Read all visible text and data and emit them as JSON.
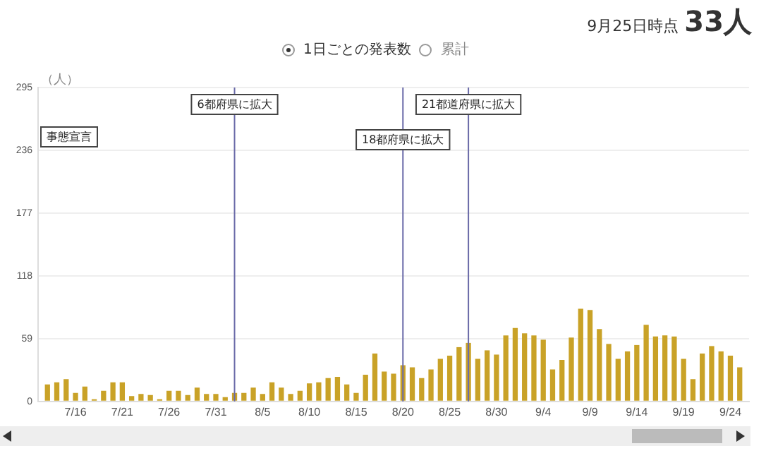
{
  "chart_data": {
    "type": "bar",
    "ylabel": "（人）",
    "color": "#c9a227",
    "x": [
      "--07-13",
      "--07-14",
      "--07-15",
      "--07-16",
      "--07-17",
      "--07-18",
      "--07-19",
      "--07-20",
      "--07-21",
      "--07-22",
      "--07-23",
      "--07-24",
      "--07-25",
      "--07-26",
      "--07-27",
      "--07-28",
      "--07-29",
      "--07-30",
      "--07-31",
      "--08-01",
      "--08-02",
      "--08-03",
      "--08-04",
      "--08-05",
      "--08-06",
      "--08-07",
      "--08-08",
      "--08-09",
      "--08-10",
      "--08-11",
      "--08-12",
      "--08-13",
      "--08-14",
      "--08-15",
      "--08-16",
      "--08-17",
      "--08-18",
      "--08-19",
      "--08-20",
      "--08-21",
      "--08-22",
      "--08-23",
      "--08-24",
      "--08-25",
      "--08-26",
      "--08-27",
      "--08-28",
      "--08-29",
      "--08-30",
      "--08-31",
      "--09-01",
      "--09-02",
      "--09-03",
      "--09-04",
      "--09-05",
      "--09-06",
      "--09-07",
      "--09-08",
      "--09-09",
      "--09-10",
      "--09-11",
      "--09-12",
      "--09-13",
      "--09-14",
      "--09-15",
      "--09-16",
      "--09-17",
      "--09-18",
      "--09-19",
      "--09-20",
      "--09-21",
      "--09-22",
      "--09-23",
      "--09-24",
      "--09-25"
    ],
    "values": [
      16,
      18,
      21,
      8,
      14,
      2,
      10,
      18,
      18,
      5,
      7,
      6,
      2,
      10,
      10,
      6,
      13,
      7,
      7,
      4,
      8,
      8,
      13,
      7,
      18,
      13,
      7,
      10,
      17,
      18,
      22,
      23,
      16,
      8,
      25,
      45,
      28,
      26,
      34,
      32,
      22,
      30,
      40,
      43,
      51,
      55,
      40,
      48,
      44,
      62,
      69,
      64,
      62,
      58,
      30,
      39,
      60,
      87,
      86,
      68,
      54,
      40,
      47,
      53,
      72,
      61,
      62,
      61,
      40,
      21,
      45,
      52,
      47,
      43,
      32
    ],
    "xlim": [
      "--07-12",
      "--09-26"
    ],
    "xticks": [
      {
        "value": "--07-16",
        "label": "7/16"
      },
      {
        "value": "--07-21",
        "label": "7/21"
      },
      {
        "value": "--07-26",
        "label": "7/26"
      },
      {
        "value": "--07-31",
        "label": "7/31"
      },
      {
        "value": "--08-05",
        "label": "8/5"
      },
      {
        "value": "--08-10",
        "label": "8/10"
      },
      {
        "value": "--08-15",
        "label": "8/15"
      },
      {
        "value": "--08-20",
        "label": "8/20"
      },
      {
        "value": "--08-25",
        "label": "8/25"
      },
      {
        "value": "--08-30",
        "label": "8/30"
      },
      {
        "value": "--09-04",
        "label": "9/4"
      },
      {
        "value": "--09-09",
        "label": "9/9"
      },
      {
        "value": "--09-14",
        "label": "9/14"
      },
      {
        "value": "--09-19",
        "label": "9/19"
      },
      {
        "value": "--09-24",
        "label": "9/24"
      }
    ],
    "ylim": [
      0,
      295
    ],
    "yticks": [
      0,
      59,
      118,
      177,
      236,
      295
    ],
    "grid": "y",
    "ref_lines": [
      {
        "axis": "x",
        "value": "--08-02",
        "label": "6都府県に拡大",
        "color": "#6a6aa8"
      },
      {
        "axis": "x",
        "value": "--08-20",
        "label": "18都府県に拡大",
        "color": "#6a6aa8"
      },
      {
        "axis": "x",
        "value": "--08-27",
        "label": "21都道府県に拡大",
        "color": "#6a6aa8"
      }
    ],
    "annotations": [
      "9月25日時点",
      "33人",
      "1日ごとの発表数",
      "累計",
      "事態宣言"
    ]
  }
}
